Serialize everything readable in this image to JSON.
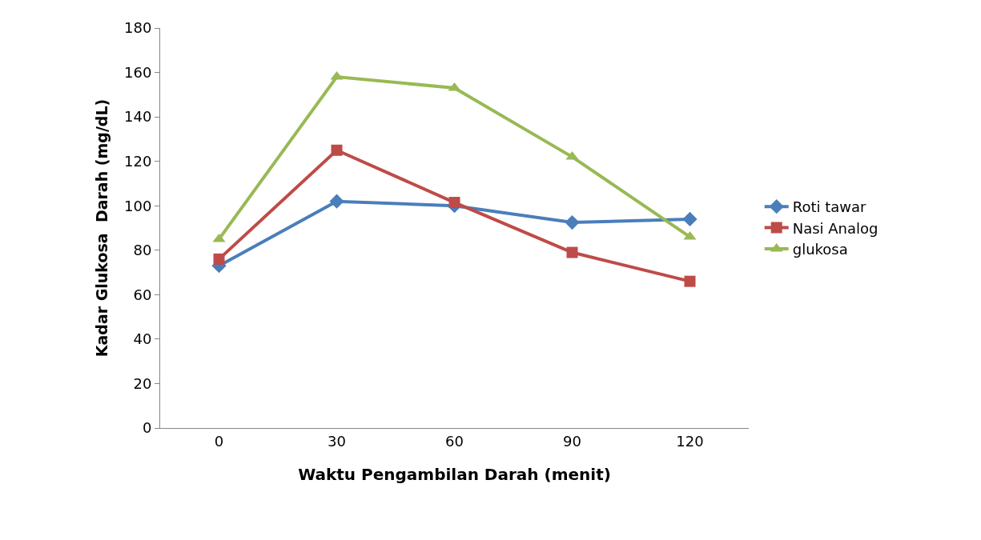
{
  "chart_data": {
    "type": "line",
    "xlabel": "Waktu Pengambilan Darah (menit)",
    "ylabel": "Kadar Glukosa  Darah (mg/dL)",
    "categories": [
      "0",
      "30",
      "60",
      "90",
      "120"
    ],
    "ylim": [
      0,
      180
    ],
    "yticks": [
      0,
      20,
      40,
      60,
      80,
      100,
      120,
      140,
      160,
      180
    ],
    "legend": "right",
    "series": [
      {
        "name": "Roti tawar",
        "color": "#4a7ebb",
        "marker": "diamond",
        "values": [
          73,
          102,
          100,
          92.5,
          94
        ]
      },
      {
        "name": "Nasi Analog",
        "color": "#be4b48",
        "marker": "square",
        "values": [
          76,
          125,
          101.5,
          79,
          66
        ]
      },
      {
        "name": "glukosa",
        "color": "#98b954",
        "marker": "triangle",
        "values": [
          85,
          158,
          153,
          122,
          86
        ]
      }
    ]
  }
}
